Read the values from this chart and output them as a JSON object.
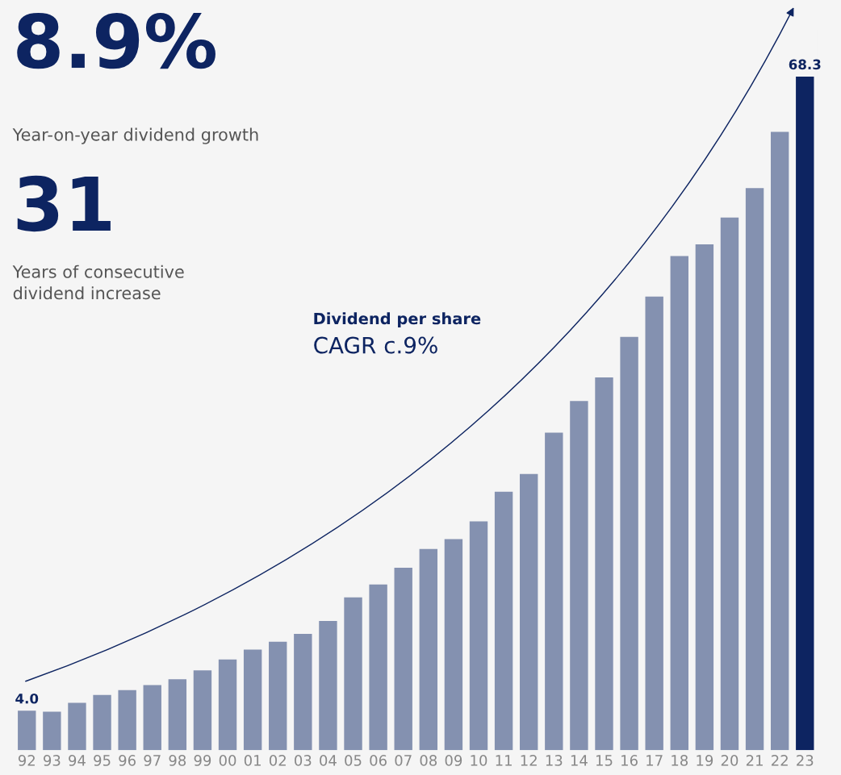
{
  "chart_data": {
    "type": "bar",
    "categories": [
      "92",
      "93",
      "94",
      "95",
      "96",
      "97",
      "98",
      "99",
      "00",
      "01",
      "02",
      "03",
      "04",
      "05",
      "06",
      "07",
      "08",
      "09",
      "10",
      "11",
      "12",
      "13",
      "14",
      "15",
      "16",
      "17",
      "18",
      "19",
      "20",
      "21",
      "22",
      "23"
    ],
    "values": [
      4.0,
      3.9,
      4.8,
      5.6,
      6.1,
      6.6,
      7.2,
      8.1,
      9.2,
      10.2,
      11.0,
      11.8,
      13.1,
      15.5,
      16.8,
      18.5,
      20.4,
      21.4,
      23.2,
      26.2,
      28.0,
      32.2,
      35.4,
      37.8,
      41.9,
      46.0,
      50.1,
      51.3,
      54.0,
      57.0,
      62.7,
      68.3
    ],
    "colors": [
      "#8491b0",
      "#8491b0",
      "#8491b0",
      "#8491b0",
      "#8491b0",
      "#8491b0",
      "#8491b0",
      "#8491b0",
      "#8491b0",
      "#8491b0",
      "#8491b0",
      "#8491b0",
      "#8491b0",
      "#8491b0",
      "#8491b0",
      "#8491b0",
      "#8491b0",
      "#8491b0",
      "#8491b0",
      "#8491b0",
      "#8491b0",
      "#8491b0",
      "#8491b0",
      "#8491b0",
      "#8491b0",
      "#8491b0",
      "#8491b0",
      "#8491b0",
      "#8491b0",
      "#8491b0",
      "#8491b0",
      "#0d2461"
    ],
    "value_labels": [
      "4.0",
      null,
      null,
      null,
      null,
      null,
      null,
      null,
      null,
      null,
      null,
      null,
      null,
      null,
      null,
      null,
      null,
      null,
      null,
      null,
      null,
      null,
      null,
      null,
      null,
      null,
      null,
      null,
      null,
      null,
      null,
      "68.3"
    ],
    "annotations": [
      "8.9%",
      "Year-on-year dividend growth",
      "31",
      "Years of consecutive\ndividend increase",
      "Dividend per share",
      "CAGR c.9%"
    ],
    "grid": false,
    "legend": false
  }
}
